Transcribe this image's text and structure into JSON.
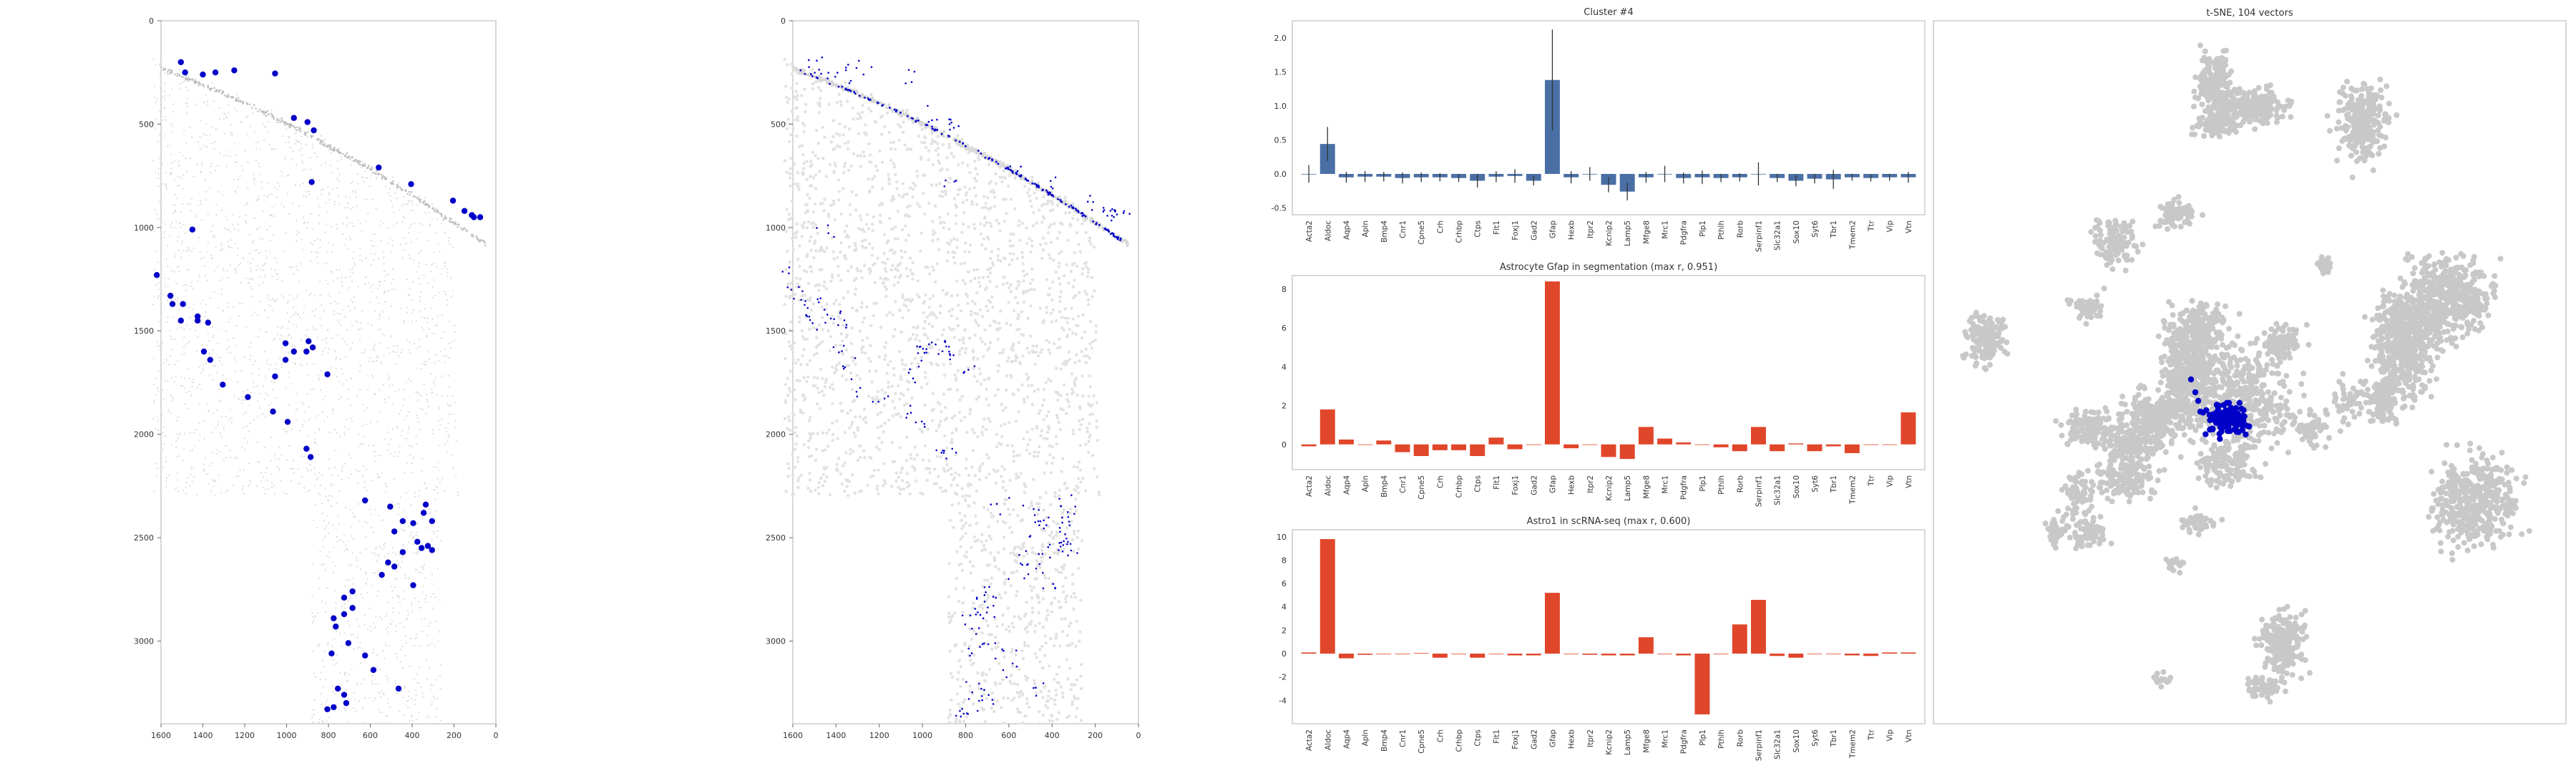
{
  "colors": {
    "accent_blue": "#0000c8",
    "bar_blue": "#4a6fa5",
    "bar_red": "#e0462a",
    "gray_cell": "#c8c8c8",
    "axis": "#cccccc",
    "text": "#333333"
  },
  "chart_data": [
    {
      "type": "scatter",
      "name": "spatial-cells",
      "xlim": [
        1600,
        0
      ],
      "ylim": [
        3400,
        0
      ],
      "xticks": [
        "1600",
        "1400",
        "1200",
        "1000",
        "800",
        "600",
        "400",
        "200",
        "0"
      ],
      "yticks": [
        "0",
        "500",
        "1000",
        "1500",
        "2000",
        "2500",
        "3000"
      ],
      "grid": false,
      "highlight_points": [
        [
          1505,
          200
        ],
        [
          1485,
          250
        ],
        [
          1400,
          260
        ],
        [
          1340,
          250
        ],
        [
          1250,
          240
        ],
        [
          1055,
          255
        ],
        [
          965,
          470
        ],
        [
          900,
          490
        ],
        [
          870,
          530
        ],
        [
          560,
          710
        ],
        [
          405,
          790
        ],
        [
          205,
          870
        ],
        [
          150,
          920
        ],
        [
          115,
          940
        ],
        [
          105,
          950
        ],
        [
          75,
          950
        ],
        [
          880,
          780
        ],
        [
          1450,
          1010
        ],
        [
          1620,
          1230
        ],
        [
          1555,
          1330
        ],
        [
          1545,
          1370
        ],
        [
          1495,
          1370
        ],
        [
          1505,
          1450
        ],
        [
          1425,
          1430
        ],
        [
          1425,
          1450
        ],
        [
          1375,
          1460
        ],
        [
          1395,
          1600
        ],
        [
          1365,
          1640
        ],
        [
          1305,
          1760
        ],
        [
          1185,
          1820
        ],
        [
          1055,
          1720
        ],
        [
          1005,
          1640
        ],
        [
          1005,
          1560
        ],
        [
          965,
          1600
        ],
        [
          895,
          1550
        ],
        [
          875,
          1580
        ],
        [
          905,
          1600
        ],
        [
          805,
          1710
        ],
        [
          1065,
          1890
        ],
        [
          995,
          1940
        ],
        [
          905,
          2070
        ],
        [
          885,
          2110
        ],
        [
          625,
          2320
        ],
        [
          505,
          2350
        ],
        [
          335,
          2340
        ],
        [
          345,
          2380
        ],
        [
          305,
          2420
        ],
        [
          485,
          2470
        ],
        [
          445,
          2420
        ],
        [
          395,
          2430
        ],
        [
          355,
          2550
        ],
        [
          375,
          2520
        ],
        [
          325,
          2540
        ],
        [
          305,
          2560
        ],
        [
          445,
          2570
        ],
        [
          515,
          2620
        ],
        [
          485,
          2640
        ],
        [
          545,
          2680
        ],
        [
          395,
          2730
        ],
        [
          685,
          2760
        ],
        [
          725,
          2790
        ],
        [
          685,
          2840
        ],
        [
          725,
          2870
        ],
        [
          775,
          2890
        ],
        [
          765,
          2930
        ],
        [
          705,
          3010
        ],
        [
          785,
          3060
        ],
        [
          625,
          3070
        ],
        [
          585,
          3140
        ],
        [
          755,
          3230
        ],
        [
          725,
          3260
        ],
        [
          715,
          3300
        ],
        [
          775,
          3320
        ],
        [
          805,
          3330
        ],
        [
          465,
          3230
        ]
      ]
    },
    {
      "type": "scatter",
      "name": "spatial-segmentation",
      "xlim": [
        1600,
        0
      ],
      "ylim": [
        3400,
        0
      ],
      "xticks": [
        "1600",
        "1400",
        "1200",
        "1000",
        "800",
        "600",
        "400",
        "200",
        "0"
      ],
      "yticks": [
        "0",
        "500",
        "1000",
        "1500",
        "2000",
        "2500",
        "3000"
      ],
      "grid": false
    },
    {
      "type": "bar",
      "title": "Cluster #4",
      "categories": [
        "Acta2",
        "Aldoc",
        "Aqp4",
        "Apln",
        "Bmp4",
        "Cnr1",
        "Cpne5",
        "Crh",
        "Crhbp",
        "Ctps",
        "Flt1",
        "Foxj1",
        "Gad2",
        "Gfap",
        "Hexb",
        "Itpr2",
        "Kcnip2",
        "Lamp5",
        "Mfge8",
        "Mrc1",
        "Pdgfra",
        "Plp1",
        "Pthlh",
        "Rorb",
        "Serpinf1",
        "Slc32a1",
        "Sox10",
        "Syt6",
        "Tbr1",
        "Tmem2",
        "Ttr",
        "Vip",
        "Vtn"
      ],
      "values": [
        0.0,
        0.44,
        -0.05,
        -0.04,
        -0.04,
        -0.06,
        -0.05,
        -0.05,
        -0.06,
        -0.1,
        -0.04,
        -0.03,
        -0.1,
        1.38,
        -0.05,
        0.0,
        -0.16,
        -0.26,
        -0.05,
        0.0,
        -0.06,
        -0.05,
        -0.06,
        -0.05,
        0.0,
        -0.06,
        -0.1,
        -0.07,
        -0.08,
        -0.05,
        -0.06,
        -0.05,
        -0.05
      ],
      "errors": [
        0.13,
        0.25,
        0.08,
        0.08,
        0.07,
        0.08,
        0.07,
        0.06,
        0.06,
        0.1,
        0.08,
        0.1,
        0.07,
        0.74,
        0.09,
        0.1,
        0.11,
        0.13,
        0.08,
        0.12,
        0.08,
        0.1,
        0.06,
        0.06,
        0.17,
        0.06,
        0.08,
        0.07,
        0.14,
        0.05,
        0.05,
        0.05,
        0.08
      ],
      "yticks": [
        "-0.5",
        "0.0",
        "0.5",
        "1.0",
        "1.5",
        "2.0"
      ],
      "ylim": [
        -0.6,
        2.25
      ]
    },
    {
      "type": "bar",
      "title": "Astrocyte Gfap in segmentation (max r, 0.951)",
      "categories": [
        "Acta2",
        "Aldoc",
        "Aqp4",
        "Apln",
        "Bmp4",
        "Cnr1",
        "Cpne5",
        "Crh",
        "Crhbp",
        "Ctps",
        "Flt1",
        "Foxj1",
        "Gad2",
        "Gfap",
        "Hexb",
        "Itpr2",
        "Kcnip2",
        "Lamp5",
        "Mfge8",
        "Mrc1",
        "Pdgfra",
        "Plp1",
        "Pthlh",
        "Rorb",
        "Serpinf1",
        "Slc32a1",
        "Sox10",
        "Syt6",
        "Tbr1",
        "Tmem2",
        "Ttr",
        "Vip",
        "Vtn"
      ],
      "values": [
        -0.1,
        1.8,
        0.25,
        0.0,
        0.2,
        -0.4,
        -0.6,
        -0.3,
        -0.3,
        -0.6,
        0.35,
        -0.25,
        0.0,
        8.4,
        -0.2,
        0.0,
        -0.65,
        -0.75,
        0.9,
        0.3,
        0.1,
        0.0,
        -0.15,
        -0.35,
        0.9,
        -0.35,
        0.05,
        -0.35,
        -0.1,
        -0.45,
        0.0,
        0.0,
        1.65
      ],
      "yticks": [
        "0",
        "2",
        "4",
        "6",
        "8"
      ],
      "ylim": [
        -1.3,
        8.7
      ]
    },
    {
      "type": "bar",
      "title": "Astro1 in scRNA-seq (max r, 0.600)",
      "categories": [
        "Acta2",
        "Aldoc",
        "Aqp4",
        "Apln",
        "Bmp4",
        "Cnr1",
        "Cpne5",
        "Crh",
        "Crhbp",
        "Ctps",
        "Flt1",
        "Foxj1",
        "Gad2",
        "Gfap",
        "Hexb",
        "Itpr2",
        "Kcnip2",
        "Lamp5",
        "Mfge8",
        "Mrc1",
        "Pdgfra",
        "Plp1",
        "Pthlh",
        "Rorb",
        "Serpinf1",
        "Slc32a1",
        "Sox10",
        "Syt6",
        "Tbr1",
        "Tmem2",
        "Ttr",
        "Vip",
        "Vtn"
      ],
      "values": [
        0.1,
        9.8,
        -0.4,
        -0.1,
        0.0,
        0.0,
        0.05,
        -0.35,
        0.0,
        -0.35,
        0.0,
        -0.15,
        -0.15,
        5.2,
        0.0,
        -0.1,
        -0.15,
        -0.15,
        1.4,
        0.0,
        -0.15,
        -5.2,
        0.0,
        2.5,
        4.6,
        -0.2,
        -0.35,
        0.0,
        0.0,
        -0.15,
        -0.2,
        0.1,
        0.1
      ],
      "yticks": [
        "-4",
        "-2",
        "0",
        "2",
        "4",
        "6",
        "8",
        "10"
      ],
      "ylim": [
        -6.0,
        10.6
      ]
    },
    {
      "type": "scatter",
      "title": "t-SNE, 104 vectors",
      "grid": false
    }
  ]
}
